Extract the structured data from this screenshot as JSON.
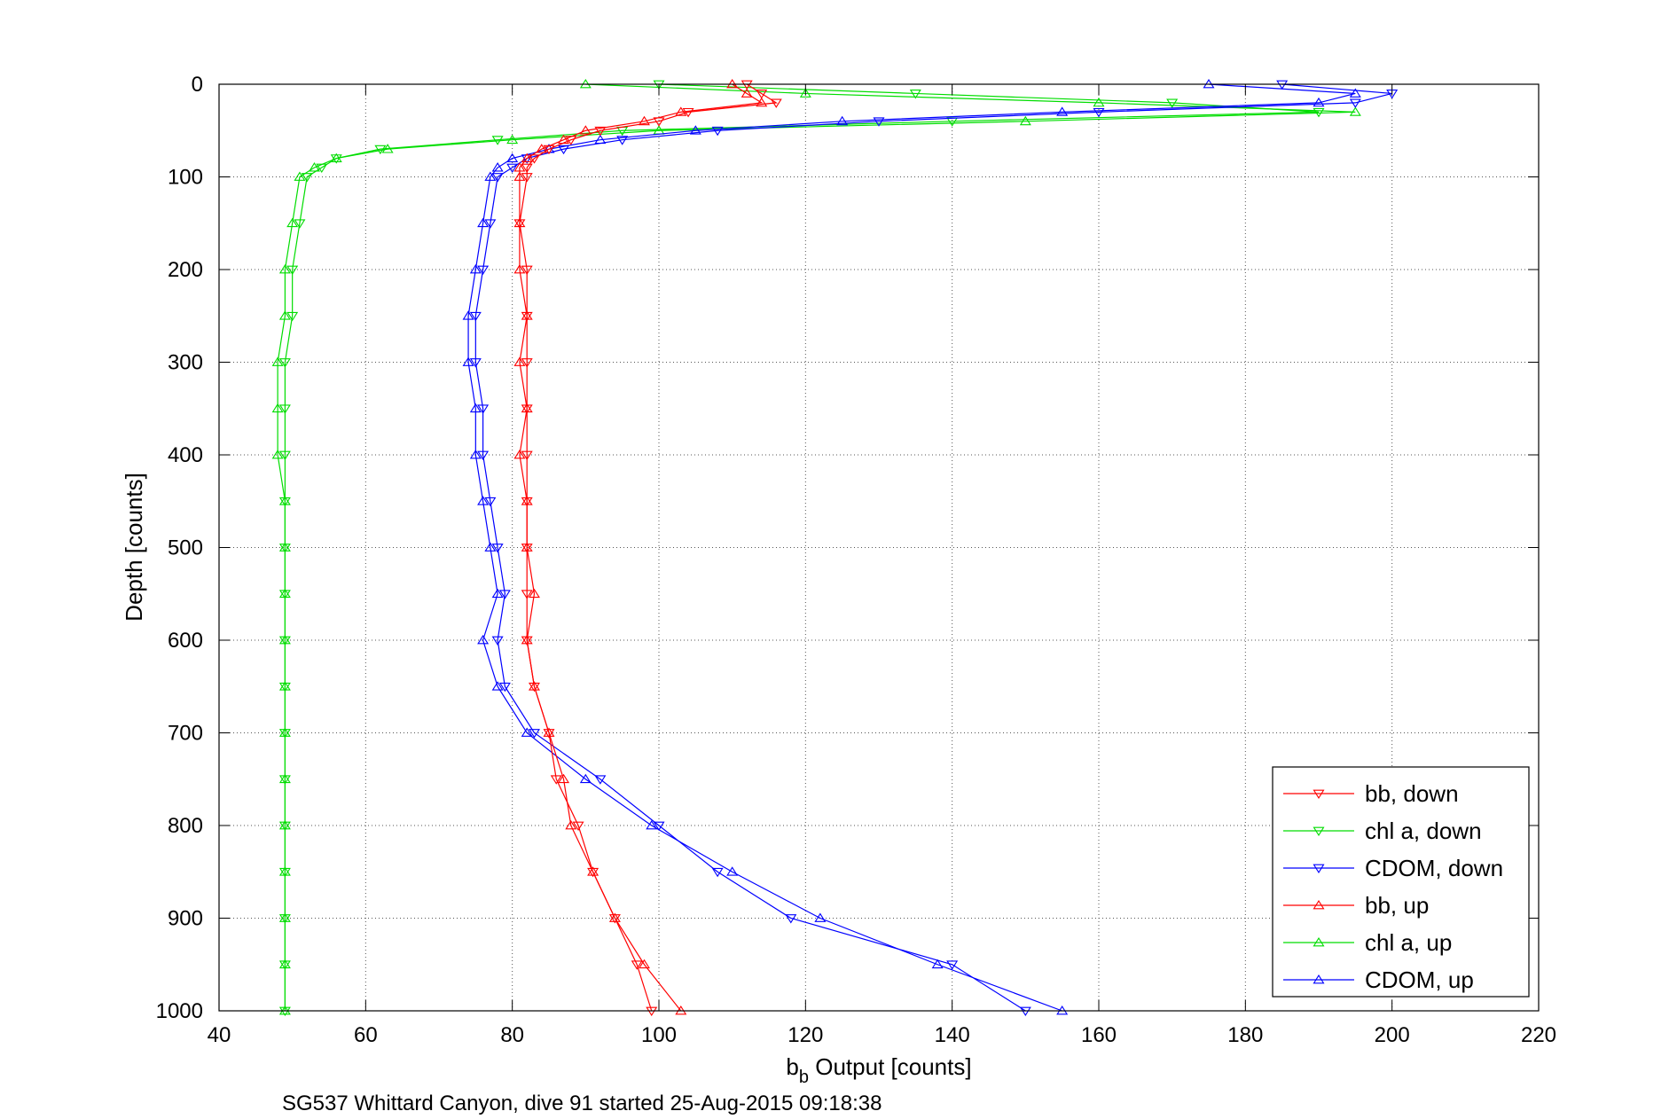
{
  "chart_data": {
    "type": "scatter",
    "xlabel_main": "b",
    "xlabel_sub": "b",
    "xlabel_rest": " Output [counts]",
    "ylabel": "Depth [counts]",
    "caption": "SG537 Whittard Canyon, dive 91 started 25-Aug-2015 09:18:38",
    "xlim": [
      40,
      220
    ],
    "ylim": [
      0,
      1000
    ],
    "y_reversed": true,
    "grid": true,
    "legend_position": "bottom-right",
    "xticks": [
      40,
      60,
      80,
      100,
      120,
      140,
      160,
      180,
      200,
      220
    ],
    "yticks": [
      0,
      100,
      200,
      300,
      400,
      500,
      600,
      700,
      800,
      900,
      1000
    ],
    "series": [
      {
        "name": "bb, down",
        "color": "#ff0000",
        "marker": "triangle-down",
        "depth": [
          0,
          10,
          20,
          30,
          40,
          50,
          60,
          70,
          80,
          90,
          100,
          150,
          200,
          250,
          300,
          350,
          400,
          450,
          500,
          550,
          600,
          650,
          700,
          750,
          800,
          850,
          900,
          950,
          1000
        ],
        "value": [
          112,
          114,
          116,
          104,
          100,
          92,
          88,
          85,
          83,
          82,
          82,
          81,
          82,
          82,
          82,
          82,
          82,
          82,
          82,
          82,
          82,
          83,
          85,
          86,
          89,
          91,
          94,
          97,
          99
        ]
      },
      {
        "name": "chl a, down",
        "color": "#00dd00",
        "marker": "triangle-down",
        "depth": [
          0,
          10,
          20,
          30,
          40,
          50,
          60,
          70,
          80,
          90,
          100,
          150,
          200,
          250,
          300,
          350,
          400,
          450,
          500,
          550,
          600,
          650,
          700,
          750,
          800,
          850,
          900,
          950,
          1000
        ],
        "value": [
          100,
          135,
          170,
          190,
          140,
          95,
          78,
          62,
          56,
          54,
          52,
          51,
          50,
          50,
          49,
          49,
          49,
          49,
          49,
          49,
          49,
          49,
          49,
          49,
          49,
          49,
          49,
          49,
          49
        ]
      },
      {
        "name": "CDOM, down",
        "color": "#0000ff",
        "marker": "triangle-down",
        "depth": [
          0,
          10,
          20,
          30,
          40,
          50,
          60,
          70,
          80,
          90,
          100,
          150,
          200,
          250,
          300,
          350,
          400,
          450,
          500,
          550,
          600,
          650,
          700,
          750,
          800,
          850,
          900,
          950,
          1000
        ],
        "value": [
          185,
          200,
          195,
          160,
          130,
          108,
          95,
          87,
          82,
          80,
          78,
          77,
          76,
          75,
          75,
          76,
          76,
          77,
          78,
          79,
          78,
          79,
          83,
          92,
          100,
          108,
          118,
          140,
          150
        ]
      },
      {
        "name": "bb, up",
        "color": "#ff0000",
        "marker": "triangle-up",
        "depth": [
          0,
          10,
          20,
          30,
          40,
          50,
          60,
          70,
          80,
          90,
          100,
          150,
          200,
          250,
          300,
          350,
          400,
          450,
          500,
          550,
          600,
          650,
          700,
          750,
          800,
          850,
          900,
          950,
          1000
        ],
        "value": [
          110,
          112,
          114,
          103,
          98,
          90,
          87,
          84,
          82,
          81,
          81,
          81,
          81,
          82,
          81,
          82,
          81,
          82,
          82,
          83,
          82,
          83,
          85,
          87,
          88,
          91,
          94,
          98,
          103
        ]
      },
      {
        "name": "chl a, up",
        "color": "#00dd00",
        "marker": "triangle-up",
        "depth": [
          0,
          10,
          20,
          30,
          40,
          50,
          60,
          70,
          80,
          90,
          100,
          150,
          200,
          250,
          300,
          350,
          400,
          450,
          500,
          550,
          600,
          650,
          700,
          750,
          800,
          850,
          900,
          950,
          1000
        ],
        "value": [
          90,
          120,
          160,
          195,
          150,
          100,
          80,
          63,
          56,
          53,
          51,
          50,
          49,
          49,
          48,
          48,
          48,
          49,
          49,
          49,
          49,
          49,
          49,
          49,
          49,
          49,
          49,
          49,
          49
        ]
      },
      {
        "name": "CDOM, up",
        "color": "#0000ff",
        "marker": "triangle-up",
        "depth": [
          0,
          10,
          20,
          30,
          40,
          50,
          60,
          70,
          80,
          90,
          100,
          150,
          200,
          250,
          300,
          350,
          400,
          450,
          500,
          550,
          600,
          650,
          700,
          750,
          800,
          850,
          900,
          950,
          1000
        ],
        "value": [
          175,
          195,
          190,
          155,
          125,
          105,
          92,
          85,
          80,
          78,
          77,
          76,
          75,
          74,
          74,
          75,
          75,
          76,
          77,
          78,
          76,
          78,
          82,
          90,
          99,
          110,
          122,
          138,
          155
        ]
      }
    ]
  }
}
